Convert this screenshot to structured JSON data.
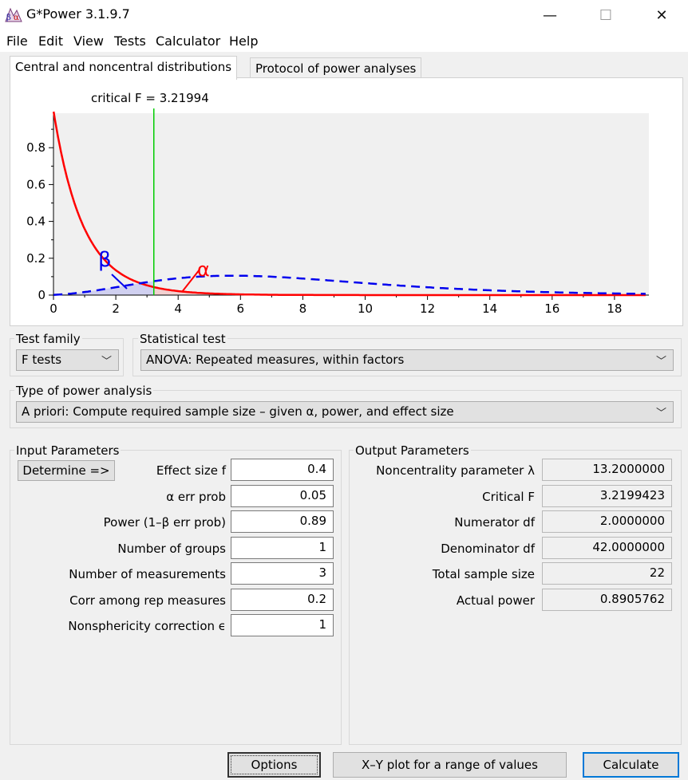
{
  "window": {
    "title": "G*Power 3.1.9.7",
    "icon": "gpower-beta-alpha-icon",
    "controls": {
      "minimize": "—",
      "maximize": "☐",
      "close": "✕"
    }
  },
  "menu": [
    "File",
    "Edit",
    "View",
    "Tests",
    "Calculator",
    "Help"
  ],
  "tabs": [
    {
      "label": "Central and noncentral distributions",
      "active": true
    },
    {
      "label": "Protocol of power analyses",
      "active": false
    }
  ],
  "chart_data": {
    "type": "line",
    "annotation": "critical F = 3.21994",
    "critical_f": 3.21994,
    "xlim": [
      0,
      19
    ],
    "ylim": [
      0,
      1
    ],
    "xticks": [
      "0",
      "2",
      "4",
      "6",
      "8",
      "10",
      "12",
      "14",
      "16",
      "18"
    ],
    "yticks": [
      "0",
      "0.2",
      "0.4",
      "0.6",
      "0.8"
    ],
    "xtick_values": [
      0,
      2,
      4,
      6,
      8,
      10,
      12,
      14,
      16,
      18
    ],
    "ytick_values": [
      0,
      0.2,
      0.4,
      0.6,
      0.8
    ],
    "series": [
      {
        "style": "solid",
        "color": "#ff0000",
        "df1": 2,
        "df2": 42,
        "lambda": 0
      },
      {
        "style": "dashed",
        "color": "#0000ee",
        "df1": 2,
        "df2": 42,
        "lambda": 13.2
      }
    ],
    "beta_symbol": "β",
    "alpha_symbol": "α",
    "critical_line_color": "#00cc00"
  },
  "test_family": {
    "label": "Test family",
    "value": "F tests"
  },
  "statistical_test": {
    "label": "Statistical test",
    "value": "ANOVA: Repeated measures, within factors"
  },
  "power_analysis": {
    "label": "Type of power analysis",
    "value": "A priori: Compute required sample size – given α, power, and effect size"
  },
  "input": {
    "title": "Input Parameters",
    "determine_label": "Determine =>",
    "params": [
      {
        "label": "Effect size f",
        "value": "0.4"
      },
      {
        "label": "α err prob",
        "value": "0.05"
      },
      {
        "label": "Power (1–β err prob)",
        "value": "0.89"
      },
      {
        "label": "Number of groups",
        "value": "1"
      },
      {
        "label": "Number of measurements",
        "value": "3"
      },
      {
        "label": "Corr among rep measures",
        "value": "0.2"
      },
      {
        "label": "Nonsphericity correction ϵ",
        "value": "1"
      }
    ]
  },
  "output": {
    "title": "Output Parameters",
    "params": [
      {
        "label": "Noncentrality parameter λ",
        "value": "13.2000000"
      },
      {
        "label": "Critical F",
        "value": "3.2199423"
      },
      {
        "label": "Numerator df",
        "value": "2.0000000"
      },
      {
        "label": "Denominator df",
        "value": "42.0000000"
      },
      {
        "label": "Total sample size",
        "value": "22"
      },
      {
        "label": "Actual power",
        "value": "0.8905762"
      }
    ]
  },
  "buttons": {
    "options": "Options",
    "xy_plot": "X–Y plot for a range of values",
    "calculate": "Calculate"
  }
}
